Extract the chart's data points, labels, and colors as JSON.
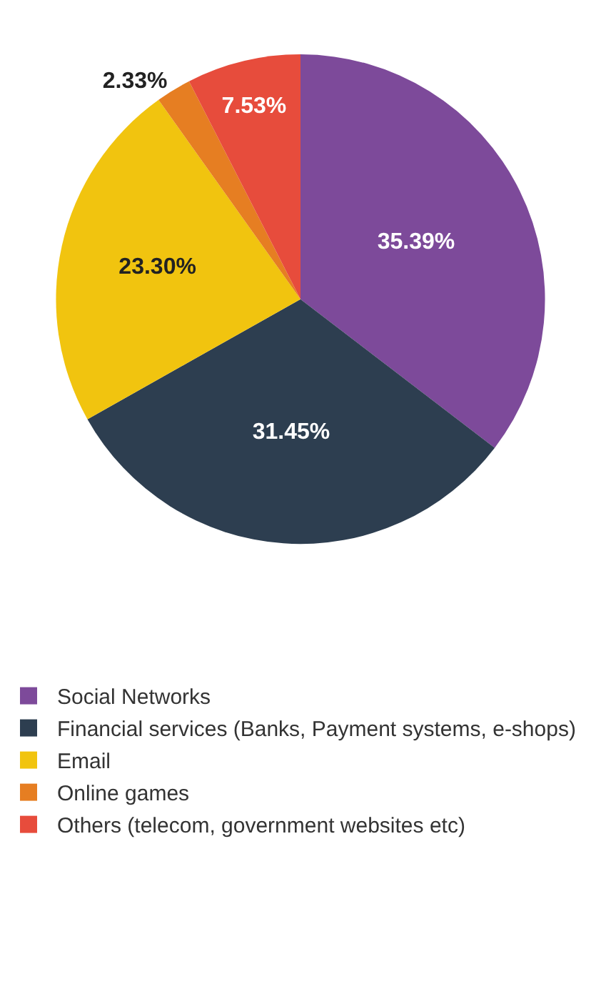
{
  "chart_data": {
    "type": "pie",
    "categories": [
      "Social Networks",
      "Financial services (Banks, Payment systems, e-shops)",
      "Email",
      "Online games",
      "Others (telecom, government websites etc)"
    ],
    "values": [
      35.39,
      31.45,
      23.3,
      2.33,
      7.53
    ],
    "value_labels": [
      "35.39%",
      "31.45%",
      "23.30%",
      "2.33%",
      "7.53%"
    ],
    "colors": [
      "#7d4a9a",
      "#2d3e50",
      "#f1c40f",
      "#e67e22",
      "#e74c3c"
    ],
    "legend": "bottom"
  }
}
